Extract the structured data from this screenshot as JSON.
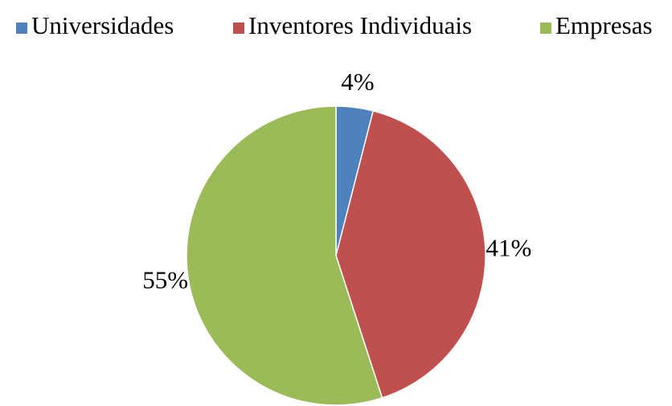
{
  "chart_data": {
    "type": "pie",
    "categories": [
      "Universidades",
      "Inventores Individuais",
      "Empresas"
    ],
    "values": [
      4,
      41,
      55
    ],
    "value_labels": [
      "4%",
      "41%",
      "55%"
    ],
    "colors": [
      "#4f81bd",
      "#c0504d",
      "#9bbb59"
    ],
    "legend": "top"
  }
}
